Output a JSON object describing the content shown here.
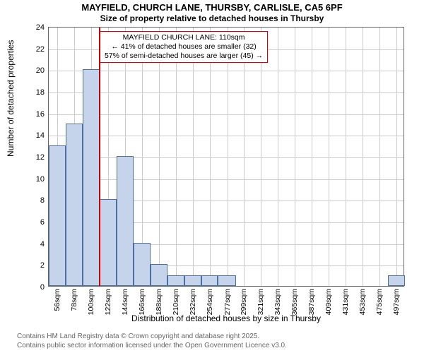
{
  "chart": {
    "type": "histogram",
    "title_main": "MAYFIELD, CHURCH LANE, THURSBY, CARLISLE, CA5 6PF",
    "title_sub": "Size of property relative to detached houses in Thursby",
    "title_fontsize": 13,
    "subtitle_fontsize": 12,
    "y_axis_label": "Number of detached properties",
    "x_axis_label": "Distribution of detached houses by size in Thursby",
    "axis_label_fontsize": 12,
    "tick_fontsize": 11,
    "background_color": "#ffffff",
    "grid_color": "#cccccc",
    "border_color": "#666666",
    "bar_fill_color": "#c5d4ea",
    "bar_border_color": "#4a6fa5",
    "marker_color": "#d00000",
    "xlim": [
      45,
      508
    ],
    "ylim": [
      0,
      24
    ],
    "ytick_step": 2,
    "yticks": [
      0,
      2,
      4,
      6,
      8,
      10,
      12,
      14,
      16,
      18,
      20,
      22,
      24
    ],
    "xticks": [
      56,
      78,
      100,
      122,
      144,
      166,
      188,
      210,
      232,
      254,
      277,
      299,
      321,
      343,
      365,
      387,
      409,
      431,
      453,
      475,
      497
    ],
    "xtick_suffix": "sqm",
    "bin_width": 22,
    "bars": [
      {
        "x_start": 45,
        "x_end": 67,
        "count": 13
      },
      {
        "x_start": 67,
        "x_end": 89,
        "count": 15
      },
      {
        "x_start": 89,
        "x_end": 111,
        "count": 20
      },
      {
        "x_start": 111,
        "x_end": 133,
        "count": 8
      },
      {
        "x_start": 133,
        "x_end": 155,
        "count": 12
      },
      {
        "x_start": 155,
        "x_end": 177,
        "count": 4
      },
      {
        "x_start": 177,
        "x_end": 199,
        "count": 2
      },
      {
        "x_start": 199,
        "x_end": 221,
        "count": 1
      },
      {
        "x_start": 221,
        "x_end": 243,
        "count": 1
      },
      {
        "x_start": 243,
        "x_end": 265,
        "count": 1
      },
      {
        "x_start": 265,
        "x_end": 288,
        "count": 1
      },
      {
        "x_start": 486,
        "x_end": 508,
        "count": 1
      }
    ],
    "marker_x": 110,
    "annotation": {
      "line1": "MAYFIELD CHURCH LANE: 110sqm",
      "line2": "← 41% of detached houses are smaller (32)",
      "line3": "57% of semi-detached houses are larger (45) →",
      "border_color": "#d00000",
      "fontsize": 10.5
    },
    "footer_line1": "Contains HM Land Registry data © Crown copyright and database right 2025.",
    "footer_line2": "Contains public sector information licensed under the Open Government Licence v3.0.",
    "footer_color": "#666666",
    "footer_fontsize": 10
  }
}
